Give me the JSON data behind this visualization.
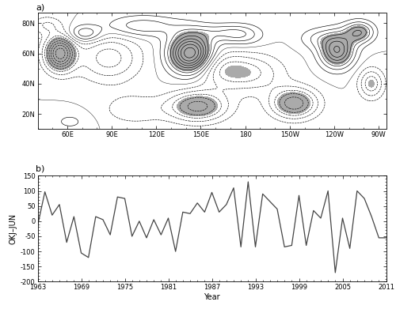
{
  "time_series": {
    "years": [
      1963,
      1964,
      1965,
      1966,
      1967,
      1968,
      1969,
      1970,
      1971,
      1972,
      1973,
      1974,
      1975,
      1976,
      1977,
      1978,
      1979,
      1980,
      1981,
      1982,
      1983,
      1984,
      1985,
      1986,
      1987,
      1988,
      1989,
      1990,
      1991,
      1992,
      1993,
      1994,
      1995,
      1996,
      1997,
      1998,
      1999,
      2000,
      2001,
      2002,
      2003,
      2004,
      2005,
      2006,
      2007,
      2008,
      2009,
      2010,
      2011
    ],
    "values": [
      -15,
      97,
      20,
      55,
      -70,
      15,
      -105,
      -120,
      15,
      5,
      -45,
      80,
      75,
      -50,
      0,
      -55,
      5,
      -45,
      10,
      -100,
      30,
      25,
      60,
      30,
      95,
      30,
      55,
      110,
      -85,
      130,
      -85,
      90,
      65,
      40,
      -85,
      -80,
      85,
      -80,
      35,
      10,
      100,
      -170,
      10,
      -90,
      100,
      75,
      15,
      -55,
      -55
    ],
    "ylabel": "OKJ–JUN",
    "xlabel": "Year",
    "ylim": [
      -200,
      150
    ],
    "yticks": [
      -200,
      -150,
      -100,
      -50,
      0,
      50,
      100,
      150
    ],
    "xticks": [
      1963,
      1969,
      1975,
      1981,
      1987,
      1993,
      1999,
      2005,
      2011
    ]
  },
  "map": {
    "lon_min": 40,
    "lon_max": 275,
    "lat_min": 10,
    "lat_max": 87,
    "xtick_labels": [
      "60E",
      "90E",
      "120E",
      "150E",
      "180",
      "150W",
      "120W",
      "90W"
    ],
    "xtick_positions": [
      60,
      90,
      120,
      150,
      180,
      210,
      240,
      270
    ],
    "ytick_labels": [
      "20N",
      "40N",
      "60N",
      "80N"
    ],
    "ytick_positions": [
      20,
      40,
      60,
      80
    ],
    "panel_label_a": "a)",
    "panel_label_b": "b)"
  },
  "line_color": "#444444",
  "line_width": 0.9,
  "bg_color": "#ffffff",
  "shade_threshold": 0.361,
  "shade_color": "#aaaaaa"
}
